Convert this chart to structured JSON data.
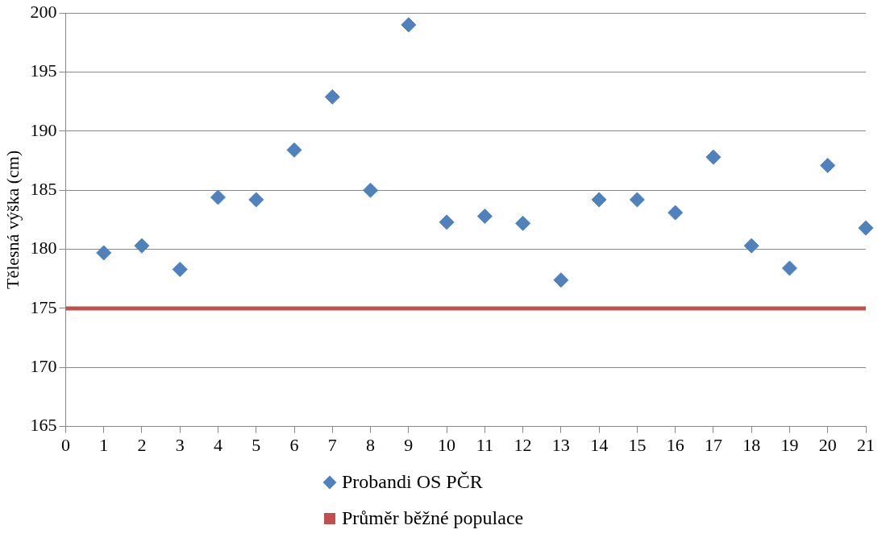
{
  "chart_data": {
    "type": "scatter",
    "ylabel": "Tělesná výška (cm)",
    "xlim": [
      0,
      21
    ],
    "xticks": [
      0,
      1,
      2,
      3,
      4,
      5,
      6,
      7,
      8,
      9,
      10,
      11,
      12,
      13,
      14,
      15,
      16,
      17,
      18,
      19,
      20,
      21
    ],
    "ylim": [
      165,
      200
    ],
    "yticks": [
      165,
      170,
      175,
      180,
      185,
      190,
      195,
      200
    ],
    "grid": "y",
    "legend": "bottom",
    "series": [
      {
        "name": "Probandi OS PČR",
        "color": "#4f81bd",
        "marker": "diamond",
        "x": [
          1,
          2,
          3,
          4,
          5,
          6,
          7,
          8,
          9,
          10,
          11,
          12,
          13,
          14,
          15,
          16,
          17,
          18,
          19,
          20,
          21
        ],
        "values": [
          179.7,
          180.3,
          178.3,
          184.4,
          184.2,
          188.4,
          192.9,
          185.0,
          199.0,
          182.3,
          182.8,
          182.2,
          177.4,
          184.2,
          184.2,
          183.1,
          187.8,
          180.3,
          178.4,
          187.1,
          181.8
        ]
      },
      {
        "name": "Průměr běžné populace",
        "type": "line",
        "marker": "none",
        "color": "#c0504d",
        "x": [
          0,
          21
        ],
        "values": [
          175,
          175
        ]
      }
    ]
  }
}
